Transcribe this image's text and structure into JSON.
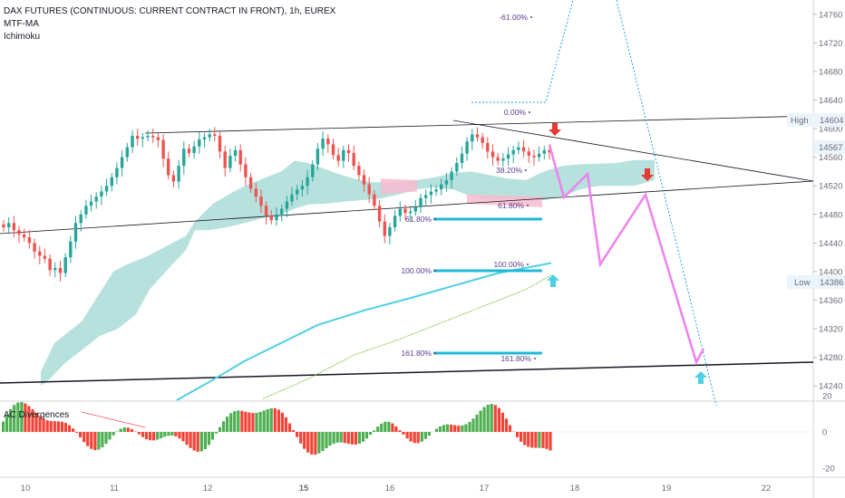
{
  "legend": {
    "title": "DAX FUTURES (CONTINUOUS: CURRENT CONTRACT IN FRONT), 1h, EUREX",
    "ind1": "MTF-MA",
    "ind2": "Ichimoku"
  },
  "subpanel": {
    "title": "AC Divergences"
  },
  "colors": {
    "up": "#26a69a",
    "down": "#ef5350",
    "cloud": "#b2dfdb",
    "cloud_red": "#f8bbd0",
    "fib": "#1fb8d8",
    "fib_text": "#5b3b8c",
    "projection": "#ee82ee",
    "osc_up": "#4caf50",
    "osc_down": "#f44336",
    "arrow_down": "#e53935",
    "arrow_up": "#4dd0e1",
    "ma": "#4dd0e1"
  },
  "price_labels": {
    "high_text": "High",
    "high_value": "14604",
    "current_value": "14567",
    "low_text": "Low",
    "low_value": "14386"
  },
  "fib_labels": [
    {
      "text": "-61.00%",
      "price": 14750
    },
    {
      "text": "0.00%",
      "price": 14617
    },
    {
      "text": "38.20%",
      "price": 14538
    },
    {
      "text": "61.80%",
      "price": 14486
    },
    {
      "text": "61.80%",
      "price": 14470
    },
    {
      "text": "100.00%",
      "price": 14403
    },
    {
      "text": "100.00%",
      "price": 14410
    },
    {
      "text": "161.80%",
      "price": 14282
    },
    {
      "text": "161.80%",
      "price": 14272
    }
  ],
  "chart_data": {
    "type": "candlestick",
    "y_axis": {
      "min": 14220,
      "max": 14780,
      "ticks": [
        14240,
        14280,
        14320,
        14360,
        14400,
        14440,
        14480,
        14520,
        14560,
        14600,
        14640,
        14680,
        14720,
        14760
      ]
    },
    "x_axis": {
      "ticks": [
        "10",
        "11",
        "12",
        "15",
        "16",
        "17",
        "18",
        "19",
        "22"
      ],
      "bold": [
        "15"
      ]
    },
    "oscillator_axis": {
      "ticks": [
        20,
        0,
        -20
      ]
    },
    "candles_close": [
      14462,
      14468,
      14458,
      14452,
      14448,
      14440,
      14428,
      14422,
      14418,
      14402,
      14405,
      14398,
      14420,
      14442,
      14468,
      14480,
      14492,
      14498,
      14505,
      14512,
      14520,
      14532,
      14545,
      14560,
      14574,
      14590,
      14586,
      14588,
      14590,
      14588,
      14584,
      14558,
      14535,
      14526,
      14548,
      14572,
      14566,
      14575,
      14585,
      14588,
      14592,
      14590,
      14568,
      14545,
      14562,
      14570,
      14550,
      14532,
      14516,
      14505,
      14492,
      14478,
      14472,
      14480,
      14488,
      14498,
      14508,
      14515,
      14520,
      14532,
      14550,
      14572,
      14586,
      14578,
      14563,
      14555,
      14570,
      14566,
      14548,
      14535,
      14522,
      14508,
      14492,
      14470,
      14450,
      14462,
      14478,
      14488,
      14482,
      14484,
      14490,
      14503,
      14507,
      14512,
      14515,
      14522,
      14528,
      14540,
      14552,
      14565,
      14582,
      14592,
      14588,
      14580,
      14568,
      14560,
      14555,
      14558,
      14564,
      14570,
      14574,
      14568,
      14562,
      14560,
      14565,
      14570,
      14567
    ]
  }
}
